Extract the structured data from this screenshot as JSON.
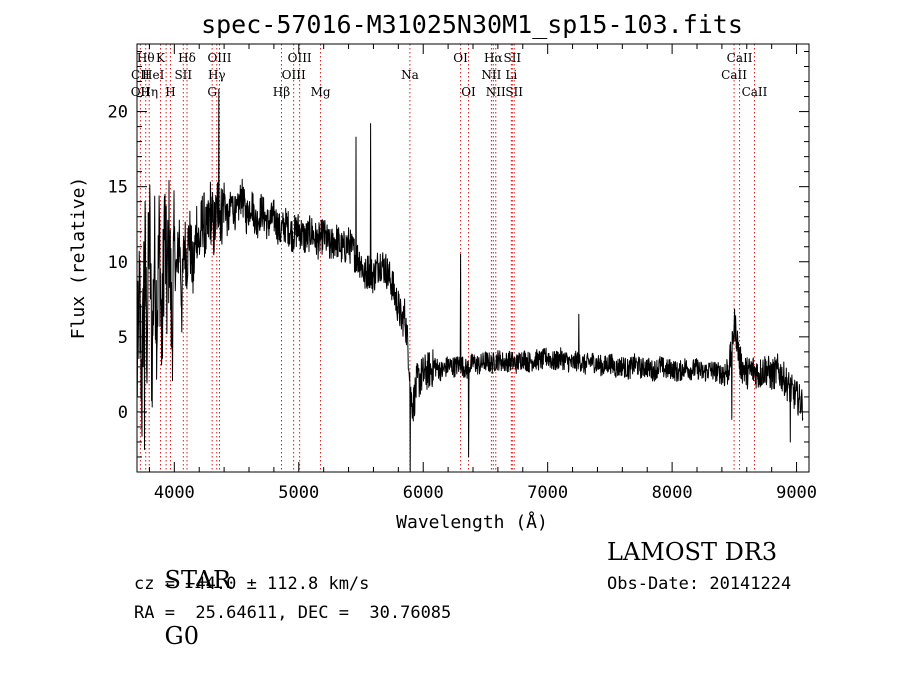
{
  "chart_data": {
    "type": "line",
    "title": "spec-57016-M31025N30M1_sp15-103.fits",
    "xlabel": "Wavelength (Å)",
    "ylabel": "Flux (relative)",
    "xlim": [
      3700,
      9100
    ],
    "ylim": [
      -4,
      24.5
    ],
    "x_ticks": [
      4000,
      5000,
      6000,
      7000,
      8000,
      9000
    ],
    "y_ticks": [
      0,
      5,
      10,
      15,
      20
    ],
    "grid": false,
    "line_color": "#000000",
    "marker_color": "#cc2222",
    "spectrum": [
      [
        3700,
        2.0
      ],
      [
        3720,
        8.0
      ],
      [
        3740,
        1.0
      ],
      [
        3760,
        12.0
      ],
      [
        3780,
        5.0
      ],
      [
        3800,
        13.0
      ],
      [
        3820,
        3.0
      ],
      [
        3840,
        11.0
      ],
      [
        3860,
        6.0
      ],
      [
        3880,
        12.0
      ],
      [
        3900,
        4.0
      ],
      [
        3920,
        13.0
      ],
      [
        3940,
        8.0
      ],
      [
        3960,
        12.0
      ],
      [
        3980,
        5.0
      ],
      [
        4000,
        11.0
      ],
      [
        4020,
        9.0
      ],
      [
        4040,
        12.0
      ],
      [
        4060,
        7.0
      ],
      [
        4080,
        11.5
      ],
      [
        4100,
        10.0
      ],
      [
        4120,
        12.0
      ],
      [
        4150,
        9.0
      ],
      [
        4180,
        12.5
      ],
      [
        4200,
        11.0
      ],
      [
        4230,
        13.0
      ],
      [
        4260,
        11.5
      ],
      [
        4290,
        13.5
      ],
      [
        4320,
        12.0
      ],
      [
        4350,
        14.0
      ],
      [
        4380,
        13.0
      ],
      [
        4400,
        14.5
      ],
      [
        4430,
        12.5
      ],
      [
        4460,
        14.0
      ],
      [
        4500,
        13.0
      ],
      [
        4540,
        14.5
      ],
      [
        4580,
        13.0
      ],
      [
        4620,
        14.0
      ],
      [
        4660,
        12.5
      ],
      [
        4700,
        13.5
      ],
      [
        4750,
        12.5
      ],
      [
        4800,
        13.0
      ],
      [
        4850,
        12.0
      ],
      [
        4900,
        12.5
      ],
      [
        4950,
        11.8
      ],
      [
        5000,
        12.2
      ],
      [
        5050,
        11.5
      ],
      [
        5100,
        12.0
      ],
      [
        5150,
        11.3
      ],
      [
        5200,
        11.8
      ],
      [
        5250,
        11.0
      ],
      [
        5300,
        11.5
      ],
      [
        5350,
        10.8
      ],
      [
        5400,
        11.2
      ],
      [
        5450,
        10.5
      ],
      [
        5500,
        10.0
      ],
      [
        5530,
        9.0
      ],
      [
        5560,
        9.5
      ],
      [
        5600,
        9.0
      ],
      [
        5650,
        10.0
      ],
      [
        5700,
        9.5
      ],
      [
        5750,
        8.5
      ],
      [
        5780,
        7.5
      ],
      [
        5800,
        7.0
      ],
      [
        5830,
        6.0
      ],
      [
        5850,
        6.5
      ],
      [
        5870,
        5.0
      ],
      [
        5890,
        3.0
      ],
      [
        5900,
        1.0
      ],
      [
        5920,
        0.5
      ],
      [
        5950,
        2.0
      ],
      [
        6000,
        2.5
      ],
      [
        6050,
        2.8
      ],
      [
        6100,
        3.0
      ],
      [
        6150,
        2.7
      ],
      [
        6200,
        3.1
      ],
      [
        6250,
        3.0
      ],
      [
        6300,
        3.2
      ],
      [
        6350,
        2.8
      ],
      [
        6400,
        3.3
      ],
      [
        6450,
        3.1
      ],
      [
        6500,
        3.4
      ],
      [
        6550,
        3.2
      ],
      [
        6600,
        3.5
      ],
      [
        6650,
        3.3
      ],
      [
        6700,
        3.4
      ],
      [
        6750,
        3.2
      ],
      [
        6800,
        3.6
      ],
      [
        6850,
        3.3
      ],
      [
        6900,
        3.5
      ],
      [
        6950,
        3.4
      ],
      [
        7000,
        3.7
      ],
      [
        7050,
        3.3
      ],
      [
        7100,
        3.6
      ],
      [
        7150,
        3.4
      ],
      [
        7200,
        3.2
      ],
      [
        7250,
        3.5
      ],
      [
        7300,
        3.1
      ],
      [
        7350,
        3.4
      ],
      [
        7400,
        3.2
      ],
      [
        7450,
        3.0
      ],
      [
        7500,
        3.3
      ],
      [
        7550,
        2.9
      ],
      [
        7600,
        3.1
      ],
      [
        7650,
        2.8
      ],
      [
        7700,
        3.2
      ],
      [
        7750,
        2.9
      ],
      [
        7800,
        3.0
      ],
      [
        7850,
        2.7
      ],
      [
        7900,
        3.1
      ],
      [
        7950,
        2.8
      ],
      [
        8000,
        2.9
      ],
      [
        8050,
        2.6
      ],
      [
        8100,
        3.0
      ],
      [
        8150,
        2.8
      ],
      [
        8200,
        2.9
      ],
      [
        8250,
        2.6
      ],
      [
        8300,
        2.8
      ],
      [
        8350,
        2.7
      ],
      [
        8400,
        2.5
      ],
      [
        8450,
        2.8
      ],
      [
        8480,
        4.0
      ],
      [
        8500,
        6.0
      ],
      [
        8520,
        5.0
      ],
      [
        8540,
        3.5
      ],
      [
        8560,
        3.0
      ],
      [
        8600,
        2.6
      ],
      [
        8650,
        2.8
      ],
      [
        8700,
        2.5
      ],
      [
        8750,
        2.9
      ],
      [
        8800,
        2.4
      ],
      [
        8850,
        2.8
      ],
      [
        8900,
        2.2
      ],
      [
        8950,
        1.5
      ],
      [
        9000,
        1.0
      ],
      [
        9050,
        0.5
      ]
    ],
    "emission_spikes": [
      {
        "x": 4358,
        "y": 21.5
      },
      {
        "x": 5460,
        "y": 18.3
      },
      {
        "x": 5577,
        "y": 19.2
      },
      {
        "x": 6300,
        "y": 10.5
      },
      {
        "x": 7250,
        "y": 6.5
      }
    ],
    "absorption_dips": [
      {
        "x": 3760,
        "y": -2.5
      },
      {
        "x": 5895,
        "y": -4.0
      },
      {
        "x": 6365,
        "y": -3.0
      },
      {
        "x": 8480,
        "y": -0.5
      },
      {
        "x": 8950,
        "y": -2.0
      }
    ],
    "line_markers": [
      {
        "x": 3727,
        "top": [
          "CII"
        ],
        "mid": [
          "OII"
        ]
      },
      {
        "x": 3770,
        "top": [
          "Hθ"
        ]
      },
      {
        "x": 3798,
        "top": [
          "HeI"
        ],
        "mid": [
          "Hη"
        ]
      },
      {
        "x": 3889,
        "top": [
          "K"
        ]
      },
      {
        "x": 3934,
        "top": [
          "HeI"
        ]
      },
      {
        "x": 3969,
        "top": [
          "H"
        ]
      },
      {
        "x": 4072,
        "top": [
          "SII"
        ]
      },
      {
        "x": 4102,
        "top": [
          "Hδ"
        ]
      },
      {
        "x": 4304,
        "top": [
          "G"
        ]
      },
      {
        "x": 4341,
        "top": [
          "Hγ"
        ]
      },
      {
        "x": 4363,
        "top": [
          "OIII"
        ]
      },
      {
        "x": 4861,
        "top": [
          "Hβ"
        ]
      },
      {
        "x": 4959,
        "top": [
          "OIII"
        ]
      },
      {
        "x": 5007,
        "top": [
          "OIII"
        ]
      },
      {
        "x": 5175,
        "top": [
          "Mg"
        ]
      },
      {
        "x": 5893,
        "top": [
          "Na"
        ]
      },
      {
        "x": 6300,
        "top": [
          "OI"
        ]
      },
      {
        "x": 6364,
        "top": [
          "OI"
        ]
      },
      {
        "x": 6548,
        "top": [
          "NII"
        ]
      },
      {
        "x": 6563,
        "top": [
          "Hα"
        ]
      },
      {
        "x": 6583,
        "top": [
          "NII"
        ]
      },
      {
        "x": 6708,
        "top": [
          "Li"
        ]
      },
      {
        "x": 6716,
        "top": [
          "SII"
        ]
      },
      {
        "x": 6731,
        "top": [
          "SII"
        ]
      },
      {
        "x": 8498,
        "top": [
          "CaII"
        ]
      },
      {
        "x": 8542,
        "top": [
          "CaII"
        ]
      },
      {
        "x": 8662,
        "top": [
          "CaII"
        ]
      }
    ],
    "marker_labels": [
      {
        "text": "Hθ",
        "x": 3770,
        "row": 1
      },
      {
        "text": "K",
        "x": 3889,
        "row": 1
      },
      {
        "text": "Hδ",
        "x": 4102,
        "row": 1
      },
      {
        "text": "OIII",
        "x": 4363,
        "row": 1
      },
      {
        "text": "OIII",
        "x": 5007,
        "row": 1
      },
      {
        "text": "OI",
        "x": 6300,
        "row": 1
      },
      {
        "text": "Hα",
        "x": 6563,
        "row": 1
      },
      {
        "text": "SII",
        "x": 6716,
        "row": 1
      },
      {
        "text": "CaII",
        "x": 8542,
        "row": 1
      },
      {
        "text": "CII",
        "x": 3727,
        "row": 2
      },
      {
        "text": "HeI",
        "x": 3830,
        "row": 2
      },
      {
        "text": "SII",
        "x": 4072,
        "row": 2
      },
      {
        "text": "Hγ",
        "x": 4341,
        "row": 2
      },
      {
        "text": "OIII",
        "x": 4959,
        "row": 2
      },
      {
        "text": "Na",
        "x": 5893,
        "row": 2
      },
      {
        "text": "NII",
        "x": 6548,
        "row": 2
      },
      {
        "text": "Li",
        "x": 6708,
        "row": 2
      },
      {
        "text": "CaII",
        "x": 8498,
        "row": 2
      },
      {
        "text": "OII",
        "x": 3727,
        "row": 3
      },
      {
        "text": "Hη",
        "x": 3798,
        "row": 3
      },
      {
        "text": "H",
        "x": 3969,
        "row": 3
      },
      {
        "text": "G",
        "x": 4304,
        "row": 3
      },
      {
        "text": "Hβ",
        "x": 4861,
        "row": 3
      },
      {
        "text": "Mg",
        "x": 5175,
        "row": 3
      },
      {
        "text": "OI",
        "x": 6364,
        "row": 3
      },
      {
        "text": "NII",
        "x": 6583,
        "row": 3
      },
      {
        "text": "SII",
        "x": 6731,
        "row": 3
      },
      {
        "text": "CaII",
        "x": 8662,
        "row": 3
      }
    ]
  },
  "info": {
    "class_label": "STAR",
    "subclass_label": "G0",
    "survey": "LAMOST DR3",
    "cz": "cz = −44.0 ± 112.8 km/s",
    "obs_date": "Obs-Date: 20141224",
    "coords": "RA =  25.64611, DEC =  30.76085"
  }
}
